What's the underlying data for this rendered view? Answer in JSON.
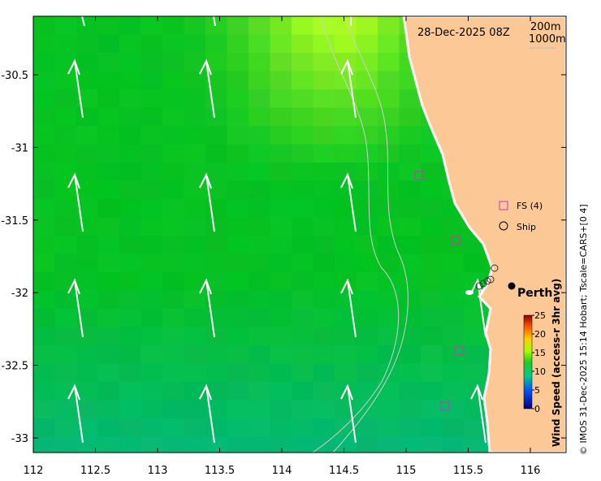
{
  "map": {
    "timestamp": "28-Dec-2025 08Z",
    "contour_labels": [
      "200m",
      "1000m"
    ],
    "city_label": "Perth",
    "lon_ticks": [
      "112",
      "112.5",
      "113",
      "113.5",
      "114",
      "114.5",
      "115",
      "115.5",
      "116"
    ],
    "lat_ticks": [
      "-30.5",
      "-31",
      "-31.5",
      "-32",
      "-32.5",
      "-33"
    ],
    "legend": {
      "items": [
        {
          "label": "FS (4)",
          "symbol": "magenta-square",
          "color": "#cc33cc"
        },
        {
          "label": "Ship",
          "symbol": "circle",
          "color": "#000000"
        }
      ]
    },
    "colorbar": {
      "label": "Wind Speed (access-r 3hr avg)",
      "ticks": [
        "25",
        "20",
        "15",
        "10",
        "5",
        "0"
      ],
      "range": [
        0,
        25
      ]
    },
    "credit": "© IMOS 31-Dec-2025 15:14 Hobart; Tscale=CARS+[0 4]",
    "colors": {
      "land": "#fcc896",
      "coast": "#ffffff",
      "contour": "#cccccc",
      "arrow": "#ffffff"
    }
  }
}
